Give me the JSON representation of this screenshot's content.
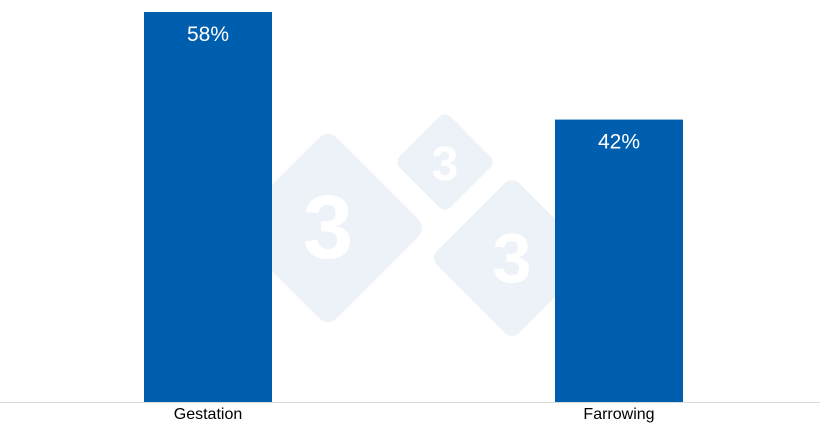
{
  "chart_data": {
    "type": "bar",
    "title": "",
    "xlabel": "",
    "ylabel": "",
    "categories": [
      "Gestation",
      "Farrowing"
    ],
    "values": [
      58,
      42
    ],
    "data_labels": [
      "58%",
      "42%"
    ],
    "ylim": [
      0,
      58
    ],
    "grid": false,
    "legend": "none",
    "colors": {
      "bar": "#005eae",
      "label": "#ffffff",
      "axis": "#d9d9d9",
      "watermark": "#edf2f8"
    }
  },
  "watermark": {
    "text": "333"
  }
}
